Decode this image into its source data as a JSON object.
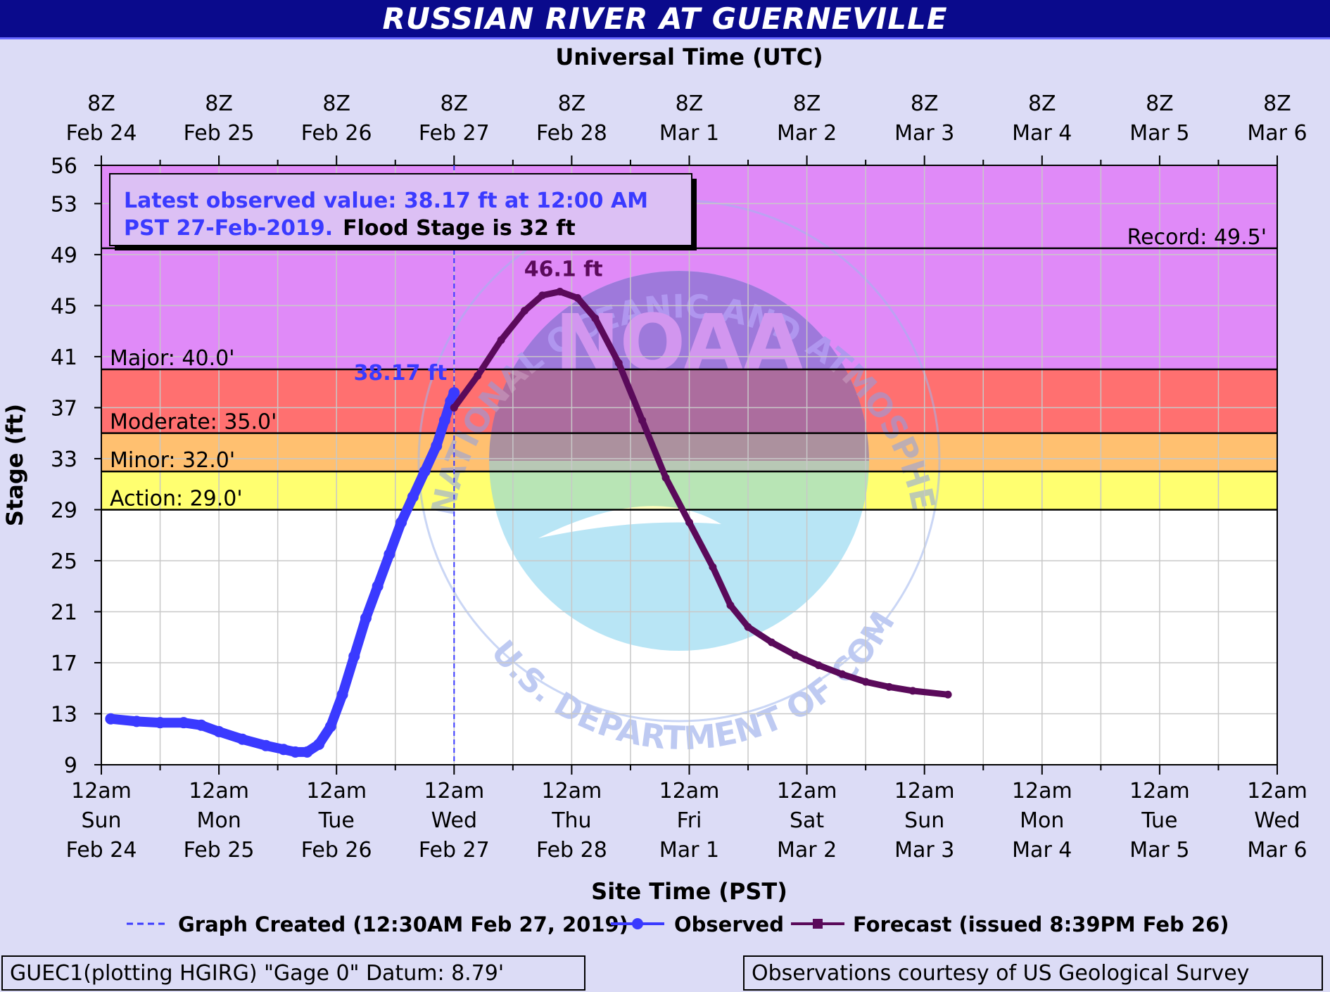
{
  "title": "RUSSIAN RIVER AT GUERNEVILLE",
  "top_axis_title": "Universal Time (UTC)",
  "bottom_axis_title": "Site Time (PST)",
  "y_axis_title": "Stage (ft)",
  "info_box": {
    "line1": "Latest observed value: 38.17 ft at 12:00 AM",
    "line2_blue": "PST 27-Feb-2019.",
    "line2_black": "Flood Stage is 32  ft"
  },
  "legend": {
    "created": "Graph Created (12:30AM Feb 27, 2019)",
    "observed": "Observed",
    "forecast": "Forecast (issued 8:39PM Feb 26)"
  },
  "footer_left": "GUEC1(plotting HGIRG) \"Gage 0\" Datum: 8.79'",
  "footer_right": "Observations courtesy of US Geological Survey",
  "watermark": {
    "ring_text": "NATIONAL OCEANIC AND ATMOSPHERIC ADMINISTRATION",
    "bottom_text": "U.S. DEPARTMENT OF COMMERCE",
    "center_text": "NOAA"
  },
  "colors": {
    "observed": "#3a3aff",
    "forecast": "#5a0a5a",
    "record_band": "#e08af8",
    "major_band": "#ff7070",
    "moderate_band": "#ffc070",
    "minor_band": "#ffff70",
    "normal_band": "#ffffff",
    "title_bar": "#0a0a8c",
    "page": "#dcdcf6"
  },
  "chart_data": {
    "type": "line",
    "title": "RUSSIAN RIVER AT GUERNEVILLE",
    "xlabel": "Site Time (PST)",
    "ylabel": "Stage (ft)",
    "x_range_days": [
      0,
      10
    ],
    "ylim": [
      9,
      56
    ],
    "yticks": [
      9,
      13,
      17,
      21,
      25,
      29,
      33,
      37,
      41,
      45,
      49,
      53,
      56
    ],
    "bottom_ticks": [
      [
        "12am",
        "Sun",
        "Feb 24"
      ],
      [
        "12am",
        "Mon",
        "Feb 25"
      ],
      [
        "12am",
        "Tue",
        "Feb 26"
      ],
      [
        "12am",
        "Wed",
        "Feb 27"
      ],
      [
        "12am",
        "Thu",
        "Feb 28"
      ],
      [
        "12am",
        "Fri",
        "Mar 1"
      ],
      [
        "12am",
        "Sat",
        "Mar 2"
      ],
      [
        "12am",
        "Sun",
        "Mar 3"
      ],
      [
        "12am",
        "Mon",
        "Mar 4"
      ],
      [
        "12am",
        "Tue",
        "Mar 5"
      ],
      [
        "12am",
        "Wed",
        "Mar 6"
      ]
    ],
    "top_ticks": [
      [
        "8Z",
        "Feb 24"
      ],
      [
        "8Z",
        "Feb 25"
      ],
      [
        "8Z",
        "Feb 26"
      ],
      [
        "8Z",
        "Feb 27"
      ],
      [
        "8Z",
        "Feb 28"
      ],
      [
        "8Z",
        "Mar  1"
      ],
      [
        "8Z",
        "Mar  2"
      ],
      [
        "8Z",
        "Mar  3"
      ],
      [
        "8Z",
        "Mar  4"
      ],
      [
        "8Z",
        "Mar  5"
      ],
      [
        "8Z",
        "Mar  6"
      ]
    ],
    "thresholds": [
      {
        "label": "Record: 49.5'",
        "value": 49.5,
        "position": "right"
      },
      {
        "label": "Major: 40.0'",
        "value": 40.0,
        "position": "left"
      },
      {
        "label": "Moderate: 35.0'",
        "value": 35.0,
        "position": "left"
      },
      {
        "label": "Minor: 32.0'",
        "value": 32.0,
        "position": "left"
      },
      {
        "label": "Action: 29.0'",
        "value": 29.0,
        "position": "left"
      }
    ],
    "bands": [
      {
        "from": 49.5,
        "to": 56,
        "color_key": "record_band"
      },
      {
        "from": 40.0,
        "to": 49.5,
        "color_key": "record_band"
      },
      {
        "from": 35.0,
        "to": 40.0,
        "color_key": "major_band"
      },
      {
        "from": 32.0,
        "to": 35.0,
        "color_key": "moderate_band"
      },
      {
        "from": 29.0,
        "to": 32.0,
        "color_key": "minor_band"
      },
      {
        "from": 9,
        "to": 29.0,
        "color_key": "normal_band"
      }
    ],
    "graph_created_day": 3.0,
    "series": [
      {
        "name": "Observed",
        "points": [
          [
            0.08,
            12.6
          ],
          [
            0.3,
            12.4
          ],
          [
            0.5,
            12.3
          ],
          [
            0.7,
            12.3
          ],
          [
            0.85,
            12.1
          ],
          [
            1.0,
            11.6
          ],
          [
            1.2,
            11.0
          ],
          [
            1.4,
            10.5
          ],
          [
            1.55,
            10.2
          ],
          [
            1.65,
            10.0
          ],
          [
            1.75,
            10.0
          ],
          [
            1.85,
            10.6
          ],
          [
            1.95,
            12.0
          ],
          [
            2.05,
            14.5
          ],
          [
            2.15,
            17.5
          ],
          [
            2.25,
            20.5
          ],
          [
            2.35,
            23.0
          ],
          [
            2.45,
            25.5
          ],
          [
            2.55,
            28.0
          ],
          [
            2.65,
            30.0
          ],
          [
            2.75,
            32.0
          ],
          [
            2.85,
            34.0
          ],
          [
            2.92,
            36.0
          ],
          [
            2.97,
            37.5
          ],
          [
            3.0,
            38.17
          ]
        ]
      },
      {
        "name": "Forecast (issued 8:39PM Feb 26)",
        "points": [
          [
            3.0,
            37.0
          ],
          [
            3.2,
            39.5
          ],
          [
            3.4,
            42.3
          ],
          [
            3.6,
            44.6
          ],
          [
            3.75,
            45.8
          ],
          [
            3.9,
            46.1
          ],
          [
            4.05,
            45.6
          ],
          [
            4.2,
            44.0
          ],
          [
            4.4,
            40.5
          ],
          [
            4.6,
            36.0
          ],
          [
            4.8,
            31.5
          ],
          [
            5.0,
            28.0
          ],
          [
            5.2,
            24.5
          ],
          [
            5.35,
            21.5
          ],
          [
            5.5,
            19.8
          ],
          [
            5.7,
            18.6
          ],
          [
            5.9,
            17.6
          ],
          [
            6.1,
            16.8
          ],
          [
            6.3,
            16.1
          ],
          [
            6.5,
            15.5
          ],
          [
            6.7,
            15.1
          ],
          [
            6.9,
            14.8
          ],
          [
            7.2,
            14.5
          ]
        ]
      }
    ],
    "annotations": [
      {
        "text": "38.17 ft",
        "x": 3.0,
        "y": 38.17,
        "series": "Observed"
      },
      {
        "text": "46.1 ft",
        "x": 3.9,
        "y": 46.1,
        "series": "Forecast (issued 8:39PM Feb 26)"
      }
    ]
  }
}
